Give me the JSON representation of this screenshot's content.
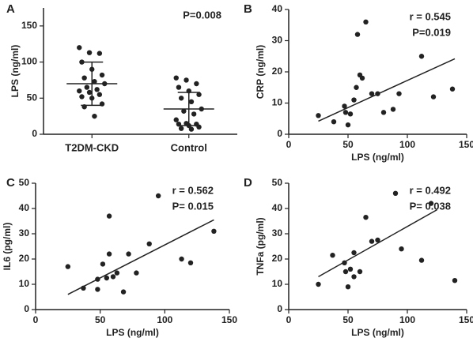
{
  "chart_data": [
    {
      "type": "strip",
      "panel": "A",
      "ylabel": "LPS (ng/ml)",
      "annotations": [
        "P=0.008"
      ],
      "categories": [
        "T2DM-CKD",
        "Control"
      ],
      "values": [
        [
          120,
          113,
          112,
          100,
          90,
          82,
          78,
          73,
          70,
          65,
          62,
          60,
          58,
          55,
          52,
          50,
          42,
          38,
          25
        ],
        [
          78,
          75,
          70,
          65,
          60,
          55,
          50,
          45,
          35,
          32,
          28,
          20,
          15,
          14,
          14,
          12,
          10,
          8,
          7
        ]
      ],
      "mean": [
        70,
        35
      ],
      "sd": [
        30,
        23
      ],
      "color": "#222222",
      "ylim": [
        0,
        175
      ],
      "yticks": [
        0,
        50,
        100,
        150
      ]
    },
    {
      "type": "scatter",
      "panel": "B",
      "xlabel": "LPS (ng/ml)",
      "ylabel": "CRP (ng/ml)",
      "annotations": [
        "r = 0.545",
        "P=0.019"
      ],
      "x": [
        25,
        38,
        47,
        48,
        50,
        52,
        55,
        57,
        58,
        60,
        62,
        65,
        70,
        75,
        80,
        88,
        93,
        112,
        122,
        138
      ],
      "y": [
        6,
        4,
        9,
        7,
        3,
        6.5,
        11,
        15,
        32,
        19,
        18,
        36,
        13,
        13,
        7,
        8,
        13,
        25,
        12,
        14.5
      ],
      "fit_x": [
        25,
        140
      ],
      "fit_y": [
        4.2,
        24.2
      ],
      "color": "#222222",
      "xlim": [
        0,
        150
      ],
      "xticks": [
        0,
        50,
        100,
        150
      ],
      "ylim": [
        0,
        40
      ],
      "yticks": [
        0,
        10,
        20,
        30,
        40
      ]
    },
    {
      "type": "scatter",
      "panel": "C",
      "xlabel": "LPS (ng/ml)",
      "ylabel": "IL6 (pg/ml)",
      "annotations": [
        "r = 0.562",
        "P= 0.015"
      ],
      "x": [
        25,
        37,
        48,
        48,
        52,
        55,
        57,
        57,
        60,
        63,
        68,
        72,
        78,
        88,
        95,
        113,
        120,
        138
      ],
      "y": [
        17,
        8.5,
        12,
        8,
        18,
        12.5,
        37,
        22,
        13,
        14.5,
        7,
        22,
        14.5,
        26,
        45,
        20,
        18.5,
        31
      ],
      "fit_x": [
        25,
        138
      ],
      "fit_y": [
        6,
        35.5
      ],
      "color": "#222222",
      "xlim": [
        0,
        150
      ],
      "xticks": [
        0,
        50,
        100,
        150
      ],
      "ylim": [
        0,
        50
      ],
      "yticks": [
        0,
        10,
        20,
        30,
        40,
        50
      ]
    },
    {
      "type": "scatter",
      "panel": "D",
      "xlabel": "LPS (ng/ml)",
      "ylabel": "TNFa (pg/ml)",
      "annotations": [
        "r = 0.492",
        "P= 0.038"
      ],
      "x": [
        25,
        37,
        47,
        48,
        50,
        52,
        55,
        55,
        60,
        65,
        70,
        75,
        90,
        95,
        112,
        120,
        140
      ],
      "y": [
        10,
        21.5,
        18.5,
        15,
        9,
        16,
        13,
        22.5,
        15,
        36.5,
        27,
        27.5,
        46,
        24,
        19.5,
        42,
        11.5
      ],
      "fit_x": [
        25,
        125
      ],
      "fit_y": [
        13,
        39.5
      ],
      "color": "#222222",
      "xlim": [
        0,
        150
      ],
      "xticks": [
        0,
        50,
        100,
        150
      ],
      "ylim": [
        0,
        50
      ],
      "yticks": [
        0,
        10,
        20,
        30,
        40,
        50
      ]
    }
  ]
}
